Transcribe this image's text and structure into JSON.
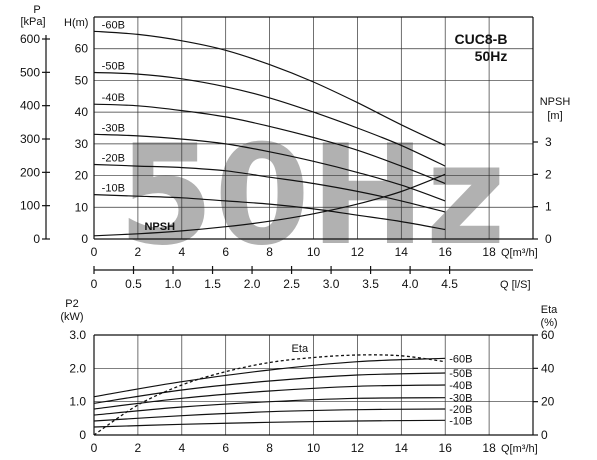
{
  "title": "CUC8-B",
  "subtitle": "50Hz",
  "watermark": "50Hz",
  "colors": {
    "line": "#111111",
    "watermark": "#a8a8a8",
    "background": "#ffffff"
  },
  "chart_data": [
    {
      "type": "line",
      "name": "head-npsh",
      "xlabel": "Q[m³/h]",
      "xlim": [
        0,
        20
      ],
      "x_ticks": [
        0,
        2,
        4,
        6,
        8,
        10,
        12,
        14,
        16,
        18
      ],
      "ylabel": "H(m)",
      "ylim": [
        0,
        70
      ],
      "y_ticks": [
        0,
        10,
        20,
        30,
        40,
        50,
        60
      ],
      "kpa_axis": {
        "label_top": "P",
        "label_unit": "[kPa]",
        "ticks": [
          0,
          100,
          200,
          300,
          400,
          500,
          600
        ]
      },
      "npsh_axis": {
        "label_top": "NPSH",
        "label_unit": "[m]",
        "ticks": [
          0,
          1,
          2,
          3
        ]
      },
      "ls_axis": {
        "label": "Q [l/S]",
        "ticks": [
          "0",
          "0.5",
          "1.0",
          "1.5",
          "2.0",
          "2.5",
          "3.0",
          "3.5",
          "4.0",
          "4.5"
        ]
      },
      "grid": true,
      "series": [
        {
          "name": "-60B",
          "x": [
            0,
            2,
            4,
            6,
            8,
            10,
            12,
            14,
            16
          ],
          "y": [
            65.5,
            64.5,
            62.5,
            59.5,
            55,
            49.5,
            43,
            36,
            29.5
          ]
        },
        {
          "name": "-50B",
          "x": [
            0,
            2,
            4,
            6,
            8,
            10,
            12,
            14,
            16
          ],
          "y": [
            52.5,
            52,
            50.5,
            48,
            44.5,
            40,
            35,
            29.5,
            23
          ]
        },
        {
          "name": "-40B",
          "x": [
            0,
            2,
            4,
            6,
            8,
            10,
            12,
            14,
            16
          ],
          "y": [
            42.5,
            42,
            40.5,
            38.5,
            35.5,
            32,
            28,
            23,
            17.5
          ]
        },
        {
          "name": "-30B",
          "x": [
            0,
            2,
            4,
            6,
            8,
            10,
            12,
            14,
            16
          ],
          "y": [
            33,
            32.5,
            31.5,
            30,
            27.5,
            24.5,
            21,
            17,
            12
          ]
        },
        {
          "name": "-20B",
          "x": [
            0,
            2,
            4,
            6,
            8,
            10,
            12,
            14,
            16
          ],
          "y": [
            23.5,
            23,
            22.5,
            21.5,
            19.5,
            17.5,
            15,
            12,
            8.5
          ]
        },
        {
          "name": "-10B",
          "x": [
            0,
            2,
            4,
            6,
            8,
            10,
            12,
            14,
            16
          ],
          "y": [
            14,
            13.5,
            13,
            12,
            11,
            9.5,
            7.5,
            5.5,
            3
          ]
        },
        {
          "name": "NPSH",
          "axis": "npsh",
          "x": [
            0,
            2,
            4,
            6,
            8,
            10,
            12,
            14,
            16
          ],
          "y": [
            0.1,
            0.16,
            0.25,
            0.38,
            0.55,
            0.78,
            1.08,
            1.47,
            2.0
          ]
        }
      ]
    },
    {
      "type": "line",
      "name": "power-efficiency",
      "xlabel": "Q[m³/h]",
      "xlim": [
        0,
        20
      ],
      "x_ticks": [
        0,
        2,
        4,
        6,
        8,
        10,
        12,
        14,
        16,
        18
      ],
      "ylabel": "P2 (kW)",
      "ylabel_top": "P2",
      "ylabel_unit": "(kW)",
      "ylim": [
        0,
        3.0
      ],
      "y_ticks": [
        "0",
        "1.0",
        "2.0",
        "3.0"
      ],
      "eta_axis": {
        "label_top": "Eta",
        "label_unit": "(%)",
        "ylim": [
          0,
          60
        ],
        "ticks": [
          0,
          20,
          40,
          60
        ]
      },
      "grid": true,
      "series": [
        {
          "name": "-60B",
          "x": [
            0,
            4,
            8,
            12,
            16
          ],
          "y": [
            1.15,
            1.6,
            1.95,
            2.2,
            2.3
          ]
        },
        {
          "name": "-50B",
          "x": [
            0,
            4,
            8,
            12,
            16
          ],
          "y": [
            0.95,
            1.35,
            1.62,
            1.8,
            1.86
          ]
        },
        {
          "name": "-40B",
          "x": [
            0,
            4,
            8,
            12,
            16
          ],
          "y": [
            0.78,
            1.1,
            1.32,
            1.46,
            1.5
          ]
        },
        {
          "name": "-30B",
          "x": [
            0,
            4,
            8,
            12,
            16
          ],
          "y": [
            0.6,
            0.84,
            1.0,
            1.1,
            1.12
          ]
        },
        {
          "name": "-20B",
          "x": [
            0,
            4,
            8,
            12,
            16
          ],
          "y": [
            0.42,
            0.58,
            0.7,
            0.76,
            0.78
          ]
        },
        {
          "name": "-10B",
          "x": [
            0,
            4,
            8,
            12,
            16
          ],
          "y": [
            0.24,
            0.32,
            0.38,
            0.42,
            0.44
          ]
        },
        {
          "name": "Eta",
          "axis": "eta",
          "x": [
            0,
            2,
            4,
            6,
            8,
            10,
            12,
            14,
            16
          ],
          "y": [
            0,
            18,
            30,
            38,
            43.5,
            46.5,
            48,
            47.5,
            44
          ]
        }
      ]
    }
  ]
}
